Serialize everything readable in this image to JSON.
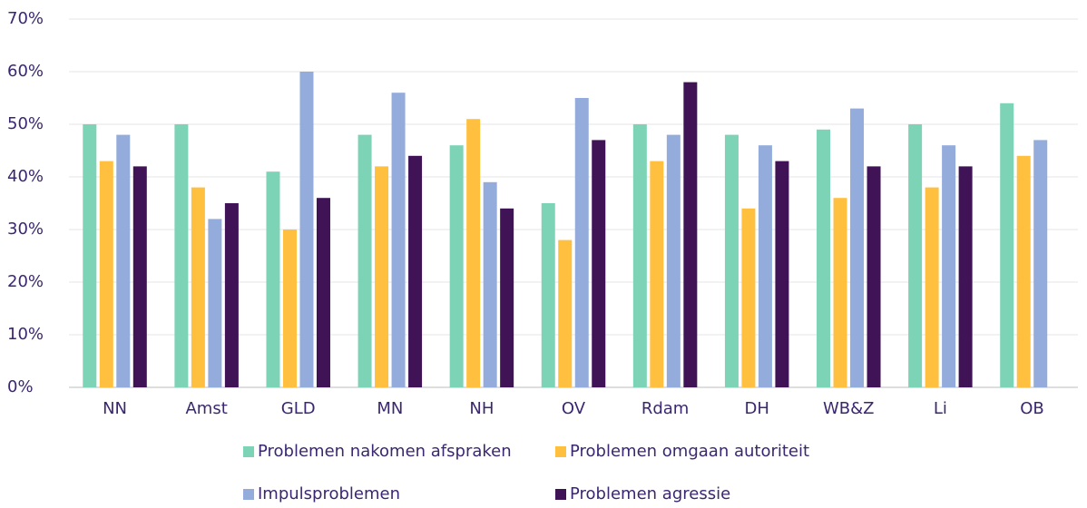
{
  "chart_data": {
    "type": "bar",
    "categories": [
      "NN",
      "Amst",
      "GLD",
      "MN",
      "NH",
      "OV",
      "Rdam",
      "DH",
      "WB&Z",
      "Li",
      "OB"
    ],
    "series": [
      {
        "name": "Problemen nakomen afspraken",
        "color": "#7dd3b6",
        "values": [
          50,
          50,
          41,
          48,
          46,
          35,
          50,
          48,
          49,
          50,
          54
        ]
      },
      {
        "name": "Problemen omgaan autoriteit",
        "color": "#ffbf3f",
        "values": [
          43,
          38,
          30,
          42,
          51,
          28,
          43,
          34,
          36,
          38,
          44
        ]
      },
      {
        "name": "Impulsproblemen",
        "color": "#93acdc",
        "values": [
          48,
          32,
          60,
          56,
          39,
          55,
          48,
          46,
          53,
          46,
          47
        ]
      },
      {
        "name": "Problemen agressie",
        "color": "#3f1356",
        "values": [
          42,
          35,
          36,
          44,
          34,
          47,
          58,
          43,
          42,
          42,
          null
        ]
      }
    ],
    "ylim": [
      0,
      70
    ],
    "yticks": [
      {
        "value": 0,
        "label": "0%"
      },
      {
        "value": 10,
        "label": "10%"
      },
      {
        "value": 20,
        "label": "20%"
      },
      {
        "value": 30,
        "label": "30%"
      },
      {
        "value": 40,
        "label": "40%"
      },
      {
        "value": 50,
        "label": "50%"
      },
      {
        "value": 60,
        "label": "60%"
      },
      {
        "value": 70,
        "label": "70%"
      }
    ],
    "grid": true,
    "legend": "bottom"
  }
}
